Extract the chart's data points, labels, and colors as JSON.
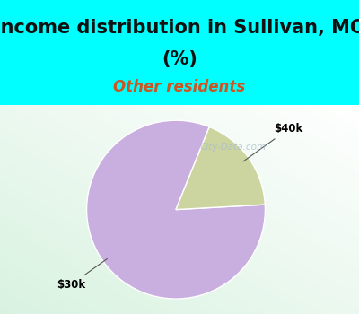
{
  "title_line1": "Income distribution in Sullivan, MO",
  "title_line2": "(%)",
  "subtitle": "Other residents",
  "title_bg_color": "#00FFFF",
  "chart_bg_color": "#e0f0e8",
  "title_fontsize": 15,
  "subtitle_fontsize": 12,
  "subtitle_color": "#cc5522",
  "title_color": "#111111",
  "slices": [
    {
      "label": "$30k",
      "value": 82,
      "color": "#c9aee0"
    },
    {
      "label": "$40k",
      "value": 18,
      "color": "#ccd5a0"
    }
  ],
  "start_angle": 68,
  "watermark": "City-Data.com",
  "watermark_color": "#aabbcc",
  "annotation_color": "#555555",
  "annotation_fontsize": 8.5,
  "annotation_fontweight": "bold"
}
